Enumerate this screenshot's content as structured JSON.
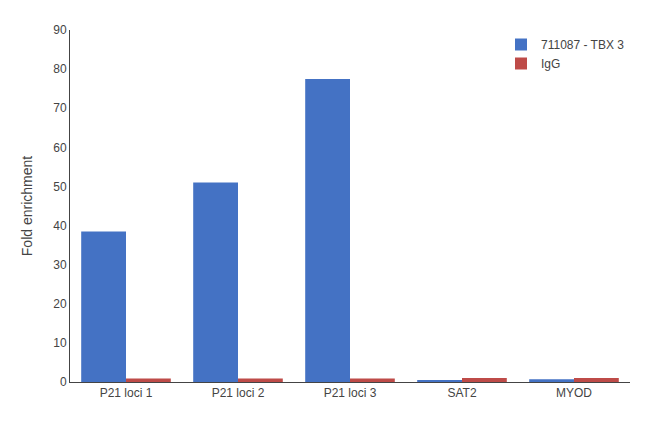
{
  "chart_data": {
    "type": "bar",
    "categories": [
      "P21 loci 1",
      "P21 loci 2",
      "P21 loci 3",
      "SAT2",
      "MYOD"
    ],
    "series": [
      {
        "name": "711087 - TBX 3",
        "color": "#4472C4",
        "values": [
          38.5,
          51.0,
          77.5,
          0.4,
          0.7
        ]
      },
      {
        "name": "IgG",
        "color": "#BE4B48",
        "values": [
          0.9,
          0.9,
          0.9,
          1.0,
          1.0
        ]
      }
    ],
    "ylabel": "Fold enrichment",
    "ylim": [
      0,
      90
    ],
    "yticks": [
      0,
      10,
      20,
      30,
      40,
      50,
      60,
      70,
      80,
      90
    ],
    "grid": false,
    "legend": "upper right"
  }
}
